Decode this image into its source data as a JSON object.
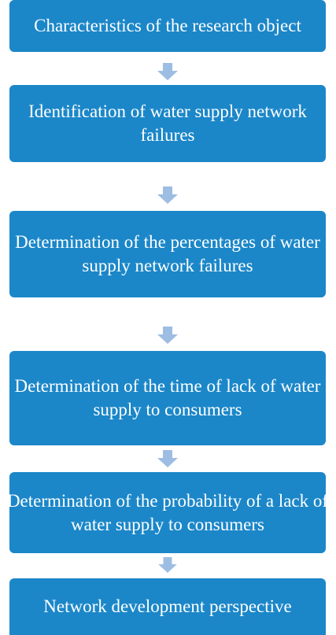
{
  "nodes": [
    {
      "label": "Characteristics of the research object"
    },
    {
      "label": "Identification of water supply network failures"
    },
    {
      "label": "Determination of the percentages of water supply network failures"
    },
    {
      "label": "Determination of the time of lack of water supply to consumers"
    },
    {
      "label": "Determination of the probability of a lack of water supply to consumers"
    },
    {
      "label": "Network development perspective"
    }
  ]
}
